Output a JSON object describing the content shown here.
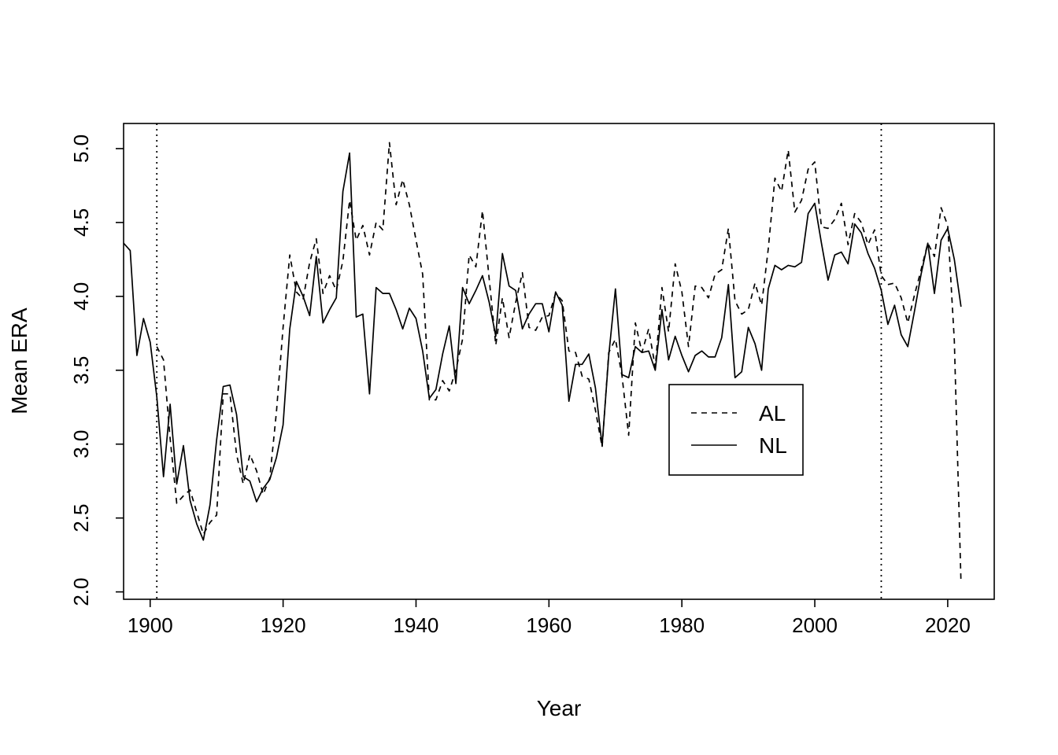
{
  "chart_data": {
    "type": "line",
    "xlabel": "Year",
    "ylabel": "Mean ERA",
    "xlim": [
      1896,
      2027
    ],
    "ylim": [
      1.95,
      5.17
    ],
    "x_ticks": [
      1900,
      1920,
      1940,
      1960,
      1980,
      2000,
      2020
    ],
    "y_ticks": [
      "2.0",
      "2.5",
      "3.0",
      "3.5",
      "4.0",
      "4.5",
      "5.0"
    ],
    "vlines": [
      1901,
      2010
    ],
    "legend": {
      "position": "center-right",
      "entries": [
        {
          "label": "AL",
          "style": "dashed"
        },
        {
          "label": "NL",
          "style": "solid"
        }
      ]
    },
    "series": [
      {
        "name": "AL",
        "style": "dashed",
        "x": [
          1901,
          1902,
          1903,
          1904,
          1905,
          1906,
          1907,
          1908,
          1909,
          1910,
          1911,
          1912,
          1913,
          1914,
          1915,
          1916,
          1917,
          1918,
          1919,
          1920,
          1921,
          1922,
          1923,
          1924,
          1925,
          1926,
          1927,
          1928,
          1929,
          1930,
          1931,
          1932,
          1933,
          1934,
          1935,
          1936,
          1937,
          1938,
          1939,
          1940,
          1941,
          1942,
          1943,
          1944,
          1945,
          1946,
          1947,
          1948,
          1949,
          1950,
          1951,
          1952,
          1953,
          1954,
          1955,
          1956,
          1957,
          1958,
          1959,
          1960,
          1961,
          1962,
          1963,
          1964,
          1965,
          1966,
          1967,
          1968,
          1969,
          1970,
          1971,
          1972,
          1973,
          1974,
          1975,
          1976,
          1977,
          1978,
          1979,
          1980,
          1981,
          1982,
          1983,
          1984,
          1985,
          1986,
          1987,
          1988,
          1989,
          1990,
          1991,
          1992,
          1993,
          1994,
          1995,
          1996,
          1997,
          1998,
          1999,
          2000,
          2001,
          2002,
          2003,
          2004,
          2005,
          2006,
          2007,
          2008,
          2009,
          2010,
          2011,
          2012,
          2013,
          2014,
          2015,
          2016,
          2017,
          2018,
          2019,
          2020,
          2021,
          2022
        ],
        "values": [
          3.66,
          3.57,
          3.04,
          2.6,
          2.65,
          2.69,
          2.54,
          2.39,
          2.47,
          2.52,
          3.34,
          3.34,
          2.93,
          2.73,
          2.93,
          2.82,
          2.66,
          2.77,
          3.22,
          3.79,
          4.28,
          4.03,
          3.98,
          4.23,
          4.39,
          4.02,
          4.14,
          4.04,
          4.24,
          4.65,
          4.38,
          4.48,
          4.28,
          4.5,
          4.45,
          5.04,
          4.62,
          4.79,
          4.62,
          4.38,
          4.15,
          3.3,
          3.3,
          3.43,
          3.36,
          3.5,
          3.71,
          4.28,
          4.2,
          4.58,
          4.12,
          3.67,
          3.99,
          3.72,
          3.96,
          4.16,
          3.79,
          3.77,
          3.86,
          3.87,
          4.02,
          3.97,
          3.63,
          3.62,
          3.46,
          3.44,
          3.23,
          2.98,
          3.62,
          3.71,
          3.46,
          3.06,
          3.82,
          3.62,
          3.78,
          3.52,
          4.06,
          3.76,
          4.22,
          4.03,
          3.66,
          4.07,
          4.06,
          3.99,
          4.15,
          4.18,
          4.46,
          3.97,
          3.88,
          3.91,
          4.09,
          3.94,
          4.32,
          4.8,
          4.71,
          4.99,
          4.57,
          4.65,
          4.86,
          4.91,
          4.47,
          4.46,
          4.52,
          4.63,
          4.35,
          4.56,
          4.5,
          4.35,
          4.45,
          4.14,
          4.08,
          4.09,
          3.99,
          3.82,
          4.01,
          4.18,
          4.36,
          4.27,
          4.6,
          4.48,
          3.7,
          2.06
        ]
      },
      {
        "name": "NL",
        "style": "solid",
        "x": [
          1896,
          1897,
          1898,
          1899,
          1900,
          1901,
          1902,
          1903,
          1904,
          1905,
          1906,
          1907,
          1908,
          1909,
          1910,
          1911,
          1912,
          1913,
          1914,
          1915,
          1916,
          1917,
          1918,
          1919,
          1920,
          1921,
          1922,
          1923,
          1924,
          1925,
          1926,
          1927,
          1928,
          1929,
          1930,
          1931,
          1932,
          1933,
          1934,
          1935,
          1936,
          1937,
          1938,
          1939,
          1940,
          1941,
          1942,
          1943,
          1944,
          1945,
          1946,
          1947,
          1948,
          1949,
          1950,
          1951,
          1952,
          1953,
          1954,
          1955,
          1956,
          1957,
          1958,
          1959,
          1960,
          1961,
          1962,
          1963,
          1964,
          1965,
          1966,
          1967,
          1968,
          1969,
          1970,
          1971,
          1972,
          1973,
          1974,
          1975,
          1976,
          1977,
          1978,
          1979,
          1980,
          1981,
          1982,
          1983,
          1984,
          1985,
          1986,
          1987,
          1988,
          1989,
          1990,
          1991,
          1992,
          1993,
          1994,
          1995,
          1996,
          1997,
          1998,
          1999,
          2000,
          2001,
          2002,
          2003,
          2004,
          2005,
          2006,
          2007,
          2008,
          2009,
          2010,
          2011,
          2012,
          2013,
          2014,
          2015,
          2016,
          2017,
          2018,
          2019,
          2020,
          2021,
          2022
        ],
        "values": [
          4.36,
          4.31,
          3.6,
          3.85,
          3.69,
          3.32,
          2.78,
          3.27,
          2.73,
          2.99,
          2.62,
          2.46,
          2.35,
          2.59,
          3.03,
          3.39,
          3.4,
          3.2,
          2.78,
          2.75,
          2.61,
          2.7,
          2.76,
          2.91,
          3.13,
          3.78,
          4.1,
          4.0,
          3.87,
          4.27,
          3.82,
          3.91,
          3.99,
          4.71,
          4.97,
          3.86,
          3.88,
          3.34,
          4.06,
          4.02,
          4.02,
          3.91,
          3.78,
          3.92,
          3.85,
          3.63,
          3.31,
          3.37,
          3.61,
          3.8,
          3.41,
          4.06,
          3.95,
          4.04,
          4.14,
          3.96,
          3.73,
          4.29,
          4.07,
          4.04,
          3.78,
          3.88,
          3.95,
          3.95,
          3.76,
          4.03,
          3.94,
          3.29,
          3.54,
          3.54,
          3.61,
          3.38,
          2.99,
          3.6,
          4.05,
          3.47,
          3.45,
          3.66,
          3.62,
          3.63,
          3.5,
          3.91,
          3.57,
          3.73,
          3.6,
          3.49,
          3.6,
          3.63,
          3.59,
          3.59,
          3.72,
          4.08,
          3.45,
          3.49,
          3.79,
          3.68,
          3.5,
          4.05,
          4.21,
          4.18,
          4.21,
          4.2,
          4.23,
          4.56,
          4.63,
          4.36,
          4.11,
          4.28,
          4.3,
          4.22,
          4.49,
          4.43,
          4.29,
          4.19,
          4.04,
          3.81,
          3.94,
          3.74,
          3.66,
          3.9,
          4.15,
          4.36,
          4.02,
          4.38,
          4.46,
          4.25,
          3.93
        ]
      }
    ]
  }
}
